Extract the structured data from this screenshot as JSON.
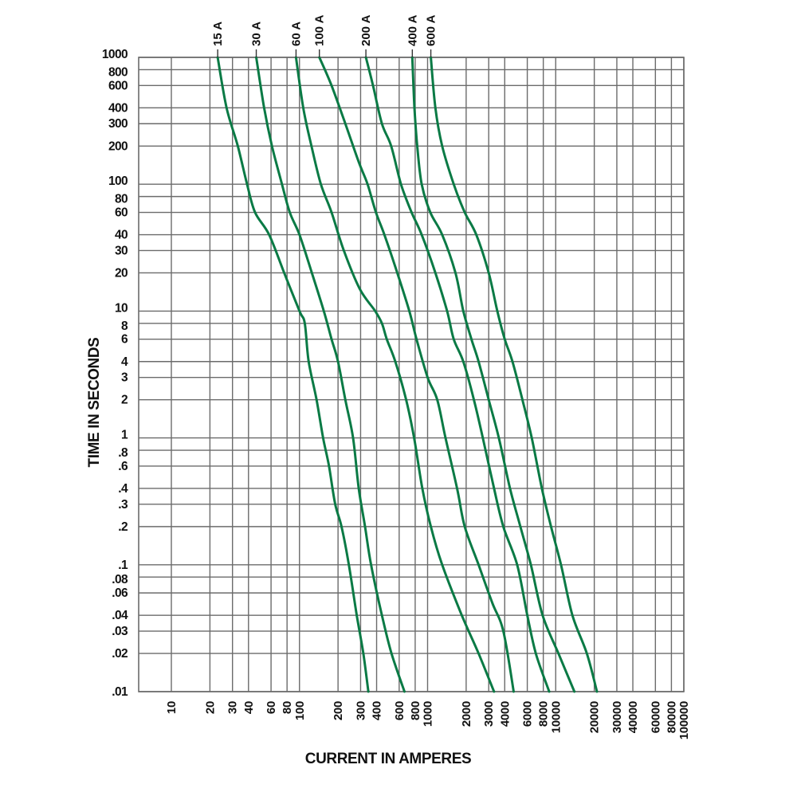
{
  "chart_data": {
    "type": "line",
    "title": "",
    "xlabel": "CURRENT IN AMPERES",
    "ylabel": "TIME IN SECONDS",
    "x_scale": "log",
    "y_scale": "log",
    "xlim": [
      5.5,
      100000
    ],
    "ylim": [
      0.01,
      1000
    ],
    "grid": true,
    "legend_position": "top labels on curves",
    "curve_color": "#0a7a45",
    "grid_color": "#6b6b6b",
    "x_ticks": [
      "10",
      "20",
      "30",
      "40",
      "60",
      "80",
      "100",
      "200",
      "300",
      "400",
      "600",
      "800",
      "1000",
      "2000",
      "3000",
      "4000",
      "6000",
      "8000",
      "10000",
      "20000",
      "30000",
      "40000",
      "60000",
      "80000",
      "100000"
    ],
    "x_tick_values": [
      10,
      20,
      30,
      40,
      60,
      80,
      100,
      200,
      300,
      400,
      600,
      800,
      1000,
      2000,
      3000,
      4000,
      6000,
      8000,
      10000,
      20000,
      30000,
      40000,
      60000,
      80000,
      100000
    ],
    "y_ticks": [
      "1000",
      "800",
      "600",
      "400",
      "300",
      "200",
      "100",
      "80",
      "60",
      "40",
      "30",
      "20",
      "10",
      "8",
      "6",
      "4",
      "3",
      "2",
      "1",
      ".8",
      ".6",
      ".4",
      ".3",
      ".2",
      ".1",
      ".08",
      ".06",
      ".04",
      ".03",
      ".02",
      ".01"
    ],
    "y_tick_values": [
      1000,
      800,
      600,
      400,
      300,
      200,
      100,
      80,
      60,
      40,
      30,
      20,
      10,
      8,
      6,
      4,
      3,
      2,
      1,
      0.8,
      0.6,
      0.4,
      0.3,
      0.2,
      0.1,
      0.08,
      0.06,
      0.04,
      0.03,
      0.02,
      0.01
    ],
    "series": [
      {
        "name": "15 A",
        "points": [
          [
            23,
            1000
          ],
          [
            27,
            400
          ],
          [
            33,
            200
          ],
          [
            39,
            100
          ],
          [
            45,
            60
          ],
          [
            58,
            40
          ],
          [
            76,
            20
          ],
          [
            100,
            10
          ],
          [
            110,
            8
          ],
          [
            118,
            4
          ],
          [
            136,
            2
          ],
          [
            153,
            1
          ],
          [
            170,
            0.6
          ],
          [
            190,
            0.3
          ],
          [
            213,
            0.2
          ],
          [
            243,
            0.1
          ],
          [
            280,
            0.04
          ],
          [
            315,
            0.02
          ],
          [
            345,
            0.01
          ]
        ]
      },
      {
        "name": "30 A",
        "points": [
          [
            46,
            1000
          ],
          [
            53,
            400
          ],
          [
            61,
            200
          ],
          [
            73,
            100
          ],
          [
            84,
            60
          ],
          [
            100,
            40
          ],
          [
            125,
            20
          ],
          [
            155,
            10
          ],
          [
            178,
            6
          ],
          [
            200,
            4
          ],
          [
            228,
            2
          ],
          [
            262,
            1
          ],
          [
            290,
            0.4
          ],
          [
            325,
            0.2
          ],
          [
            362,
            0.1
          ],
          [
            440,
            0.04
          ],
          [
            523,
            0.02
          ],
          [
            660,
            0.01
          ]
        ]
      },
      {
        "name": "60 A",
        "points": [
          [
            94,
            1000
          ],
          [
            107,
            400
          ],
          [
            124,
            200
          ],
          [
            147,
            100
          ],
          [
            178,
            60
          ],
          [
            222,
            30
          ],
          [
            295,
            15
          ],
          [
            390,
            10
          ],
          [
            440,
            8
          ],
          [
            480,
            6
          ],
          [
            560,
            4
          ],
          [
            680,
            2
          ],
          [
            785,
            1
          ],
          [
            910,
            0.4
          ],
          [
            1060,
            0.2
          ],
          [
            1300,
            0.1
          ],
          [
            1850,
            0.04
          ],
          [
            2500,
            0.02
          ],
          [
            3300,
            0.01
          ]
        ]
      },
      {
        "name": "100 A",
        "points": [
          [
            143,
            1000
          ],
          [
            178,
            600
          ],
          [
            228,
            300
          ],
          [
            290,
            150
          ],
          [
            340,
            100
          ],
          [
            395,
            60
          ],
          [
            460,
            40
          ],
          [
            580,
            20
          ],
          [
            720,
            10
          ],
          [
            820,
            6
          ],
          [
            1000,
            3
          ],
          [
            1190,
            2
          ],
          [
            1380,
            1
          ],
          [
            1700,
            0.4
          ],
          [
            1950,
            0.2
          ],
          [
            2500,
            0.1
          ],
          [
            3200,
            0.05
          ],
          [
            3900,
            0.03
          ],
          [
            4700,
            0.01
          ]
        ]
      },
      {
        "name": "200 A",
        "points": [
          [
            330,
            1000
          ],
          [
            375,
            600
          ],
          [
            440,
            300
          ],
          [
            520,
            200
          ],
          [
            620,
            100
          ],
          [
            750,
            60
          ],
          [
            900,
            40
          ],
          [
            1150,
            20
          ],
          [
            1420,
            10
          ],
          [
            1600,
            6
          ],
          [
            1900,
            4
          ],
          [
            2300,
            2
          ],
          [
            2700,
            1
          ],
          [
            3300,
            0.4
          ],
          [
            3900,
            0.2
          ],
          [
            5000,
            0.1
          ],
          [
            6000,
            0.04
          ],
          [
            7000,
            0.02
          ],
          [
            8900,
            0.01
          ]
        ]
      },
      {
        "name": "400 A",
        "points": [
          [
            760,
            1000
          ],
          [
            790,
            400
          ],
          [
            830,
            200
          ],
          [
            900,
            100
          ],
          [
            1050,
            60
          ],
          [
            1300,
            40
          ],
          [
            1650,
            20
          ],
          [
            1900,
            10
          ],
          [
            2200,
            6
          ],
          [
            2500,
            4
          ],
          [
            3000,
            2
          ],
          [
            3600,
            1
          ],
          [
            4400,
            0.4
          ],
          [
            5300,
            0.2
          ],
          [
            6400,
            0.1
          ],
          [
            7900,
            0.04
          ],
          [
            10500,
            0.02
          ],
          [
            14000,
            0.01
          ]
        ]
      },
      {
        "name": "600 A",
        "points": [
          [
            1060,
            1000
          ],
          [
            1150,
            400
          ],
          [
            1300,
            200
          ],
          [
            1600,
            100
          ],
          [
            1950,
            60
          ],
          [
            2400,
            40
          ],
          [
            3000,
            20
          ],
          [
            3500,
            10
          ],
          [
            4000,
            6
          ],
          [
            4600,
            4
          ],
          [
            5500,
            2
          ],
          [
            6500,
            1
          ],
          [
            7800,
            0.4
          ],
          [
            9200,
            0.2
          ],
          [
            11000,
            0.1
          ],
          [
            13500,
            0.04
          ],
          [
            17500,
            0.02
          ],
          [
            21000,
            0.01
          ]
        ]
      }
    ]
  },
  "labels": {
    "y_title": "TIME IN SECONDS",
    "x_title": "CURRENT IN AMPERES"
  }
}
